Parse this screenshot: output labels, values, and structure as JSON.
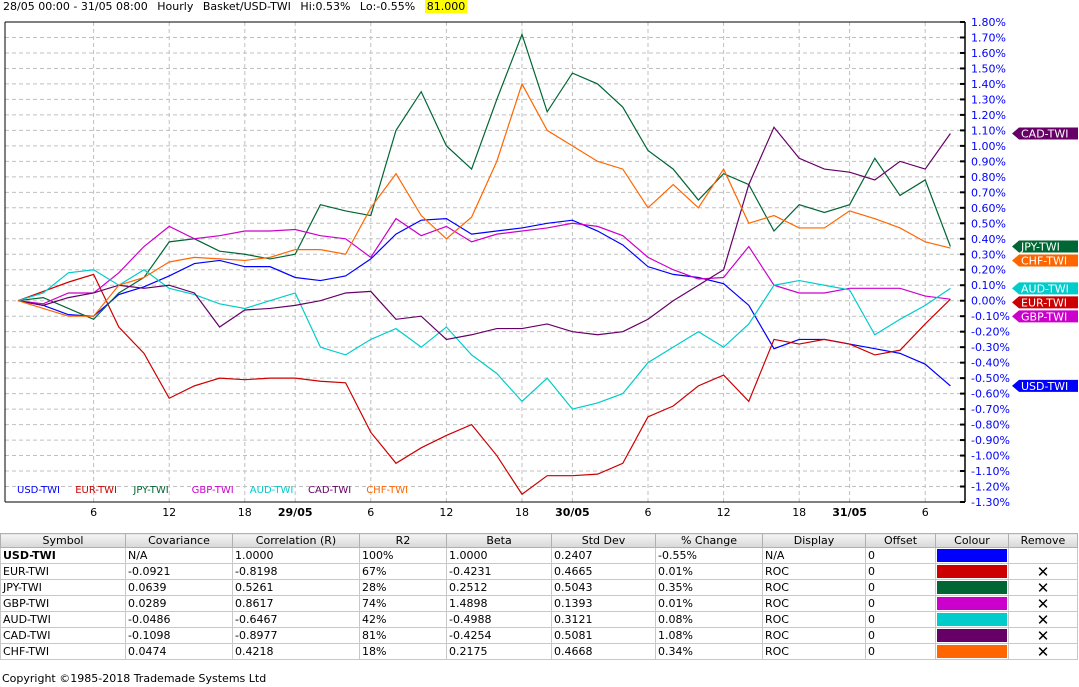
{
  "header": {
    "range": "28/05 00:00 - 31/05 08:00",
    "interval": "Hourly",
    "basket": "Basket/USD-TWI",
    "hi": "Hi:0.53%",
    "lo": "Lo:-0.55%",
    "value": "81.000"
  },
  "chart_data": {
    "type": "line",
    "ylim": [
      -1.3,
      1.8
    ],
    "y_ticks": [
      "1.80%",
      "1.70%",
      "1.60%",
      "1.50%",
      "1.40%",
      "1.30%",
      "1.20%",
      "1.10%",
      "1.00%",
      "0.90%",
      "0.80%",
      "0.70%",
      "0.60%",
      "0.50%",
      "0.40%",
      "0.30%",
      "0.20%",
      "0.10%",
      "0.00%",
      "-0.10%",
      "-0.20%",
      "-0.30%",
      "-0.40%",
      "-0.50%",
      "-0.60%",
      "-0.70%",
      "-0.80%",
      "-0.90%",
      "-1.00%",
      "-1.10%",
      "-1.20%",
      "-1.30%"
    ],
    "x": [
      0,
      2,
      4,
      6,
      8,
      10,
      12,
      14,
      16,
      18,
      20,
      22,
      24,
      26,
      28,
      30,
      32,
      34,
      36,
      38,
      40,
      42,
      44,
      46,
      48,
      50,
      52,
      54,
      56,
      58,
      60,
      62,
      64,
      66,
      68,
      70,
      72,
      74
    ],
    "x_ticks": [
      {
        "bar": 6,
        "label": "6"
      },
      {
        "bar": 12,
        "label": "12"
      },
      {
        "bar": 18,
        "label": "18"
      },
      {
        "bar": 22,
        "label": "29/05",
        "bold": true
      },
      {
        "bar": 28,
        "label": "6"
      },
      {
        "bar": 34,
        "label": "12"
      },
      {
        "bar": 40,
        "label": "18"
      },
      {
        "bar": 44,
        "label": "30/05",
        "bold": true
      },
      {
        "bar": 50,
        "label": "6"
      },
      {
        "bar": 56,
        "label": "12"
      },
      {
        "bar": 62,
        "label": "18"
      },
      {
        "bar": 66,
        "label": "31/05",
        "bold": true
      },
      {
        "bar": 72,
        "label": "6"
      }
    ],
    "grid": true,
    "legend": "bottom-left",
    "series": [
      {
        "name": "USD-TWI",
        "color": "#0000ff",
        "values": [
          0,
          -0.03,
          -0.09,
          -0.1,
          0.04,
          0.09,
          0.16,
          0.24,
          0.26,
          0.22,
          0.22,
          0.15,
          0.13,
          0.16,
          0.27,
          0.43,
          0.52,
          0.53,
          0.43,
          0.45,
          0.47,
          0.5,
          0.52,
          0.45,
          0.36,
          0.22,
          0.17,
          0.15,
          0.11,
          -0.03,
          -0.31,
          -0.25,
          -0.25,
          -0.28,
          -0.31,
          -0.34,
          -0.41,
          -0.55
        ]
      },
      {
        "name": "EUR-TWI",
        "color": "#cc0000",
        "values": [
          0,
          0.06,
          0.12,
          0.17,
          -0.17,
          -0.34,
          -0.63,
          -0.55,
          -0.5,
          -0.51,
          -0.5,
          -0.5,
          -0.52,
          -0.53,
          -0.85,
          -1.05,
          -0.95,
          -0.87,
          -0.8,
          -1.0,
          -1.25,
          -1.13,
          -1.13,
          -1.12,
          -1.05,
          -0.75,
          -0.68,
          -0.55,
          -0.48,
          -0.65,
          -0.25,
          -0.28,
          -0.25,
          -0.28,
          -0.35,
          -0.32,
          -0.15,
          0.01
        ]
      },
      {
        "name": "JPY-TWI",
        "color": "#006633",
        "values": [
          0,
          0.02,
          -0.05,
          -0.12,
          0.05,
          0.15,
          0.38,
          0.4,
          0.32,
          0.3,
          0.27,
          0.3,
          0.62,
          0.58,
          0.55,
          1.1,
          1.35,
          1.0,
          0.85,
          1.3,
          1.72,
          1.22,
          1.47,
          1.4,
          1.25,
          0.97,
          0.85,
          0.65,
          0.82,
          0.75,
          0.45,
          0.62,
          0.57,
          0.62,
          0.92,
          0.68,
          0.78,
          0.35
        ]
      },
      {
        "name": "GBP-TWI",
        "color": "#cc00cc",
        "values": [
          0,
          -0.02,
          0.05,
          0.05,
          0.18,
          0.35,
          0.48,
          0.4,
          0.42,
          0.45,
          0.45,
          0.46,
          0.42,
          0.4,
          0.28,
          0.53,
          0.42,
          0.48,
          0.38,
          0.43,
          0.45,
          0.47,
          0.5,
          0.48,
          0.42,
          0.28,
          0.2,
          0.14,
          0.15,
          0.35,
          0.1,
          0.05,
          0.05,
          0.08,
          0.08,
          0.08,
          0.03,
          0.01
        ]
      },
      {
        "name": "AUD-TWI",
        "color": "#00cccc",
        "values": [
          0,
          0.05,
          0.18,
          0.2,
          0.1,
          0.2,
          0.08,
          0.04,
          -0.02,
          -0.05,
          0.0,
          0.05,
          -0.3,
          -0.35,
          -0.25,
          -0.18,
          -0.3,
          -0.17,
          -0.35,
          -0.47,
          -0.65,
          -0.5,
          -0.7,
          -0.66,
          -0.6,
          -0.4,
          -0.3,
          -0.2,
          -0.3,
          -0.15,
          0.1,
          0.13,
          0.1,
          0.07,
          -0.22,
          -0.12,
          -0.03,
          0.08
        ]
      },
      {
        "name": "CAD-TWI",
        "color": "#660066",
        "values": [
          0,
          -0.03,
          0.02,
          0.05,
          0.1,
          0.08,
          0.1,
          0.05,
          -0.17,
          -0.06,
          -0.05,
          -0.03,
          0.0,
          0.05,
          0.06,
          -0.12,
          -0.1,
          -0.25,
          -0.22,
          -0.18,
          -0.18,
          -0.15,
          -0.2,
          -0.22,
          -0.2,
          -0.12,
          0.0,
          0.1,
          0.2,
          0.75,
          1.12,
          0.92,
          0.85,
          0.83,
          0.78,
          0.9,
          0.85,
          1.08
        ]
      },
      {
        "name": "CHF-TWI",
        "color": "#ff6600",
        "values": [
          0,
          -0.05,
          -0.1,
          -0.1,
          0.1,
          0.15,
          0.25,
          0.28,
          0.27,
          0.26,
          0.28,
          0.33,
          0.33,
          0.3,
          0.6,
          0.82,
          0.55,
          0.4,
          0.54,
          0.9,
          1.4,
          1.1,
          1.0,
          0.9,
          0.85,
          0.6,
          0.75,
          0.6,
          0.85,
          0.5,
          0.55,
          0.47,
          0.47,
          0.58,
          0.53,
          0.47,
          0.38,
          0.34
        ]
      }
    ]
  },
  "table": {
    "columns": [
      "Symbol",
      "Covariance",
      "Correlation (R)",
      "R2",
      "Beta",
      "Std Dev",
      "% Change",
      "Display",
      "Offset",
      "Colour",
      "Remove"
    ],
    "rows": [
      {
        "symbol": "USD-TWI",
        "cov": "N/A",
        "corr": "1.0000",
        "r2": "100%",
        "beta": "1.0000",
        "sd": "0.2407",
        "chg": "-0.55%",
        "display": "N/A",
        "offset": "0",
        "colour": "#0000ff",
        "remove": ""
      },
      {
        "symbol": "EUR-TWI",
        "cov": "-0.0921",
        "corr": "-0.8198",
        "r2": "67%",
        "beta": "-0.4231",
        "sd": "0.4665",
        "chg": "0.01%",
        "display": "ROC",
        "offset": "0",
        "colour": "#cc0000",
        "remove": "✕"
      },
      {
        "symbol": "JPY-TWI",
        "cov": "0.0639",
        "corr": "0.5261",
        "r2": "28%",
        "beta": "0.2512",
        "sd": "0.5043",
        "chg": "0.35%",
        "display": "ROC",
        "offset": "0",
        "colour": "#006633",
        "remove": "✕"
      },
      {
        "symbol": "GBP-TWI",
        "cov": "0.0289",
        "corr": "0.8617",
        "r2": "74%",
        "beta": "1.4898",
        "sd": "0.1393",
        "chg": "0.01%",
        "display": "ROC",
        "offset": "0",
        "colour": "#cc00cc",
        "remove": "✕"
      },
      {
        "symbol": "AUD-TWI",
        "cov": "-0.0486",
        "corr": "-0.6467",
        "r2": "42%",
        "beta": "-0.4988",
        "sd": "0.3121",
        "chg": "0.08%",
        "display": "ROC",
        "offset": "0",
        "colour": "#00cccc",
        "remove": "✕"
      },
      {
        "symbol": "CAD-TWI",
        "cov": "-0.1098",
        "corr": "-0.8977",
        "r2": "81%",
        "beta": "-0.4254",
        "sd": "0.5081",
        "chg": "1.08%",
        "display": "ROC",
        "offset": "0",
        "colour": "#660066",
        "remove": "✕"
      },
      {
        "symbol": "CHF-TWI",
        "cov": "0.0474",
        "corr": "0.4218",
        "r2": "18%",
        "beta": "0.2175",
        "sd": "0.4668",
        "chg": "0.34%",
        "display": "ROC",
        "offset": "0",
        "colour": "#ff6600",
        "remove": "✕"
      }
    ]
  },
  "footer": "Copyright ©1985-2018 Trademade Systems Ltd"
}
